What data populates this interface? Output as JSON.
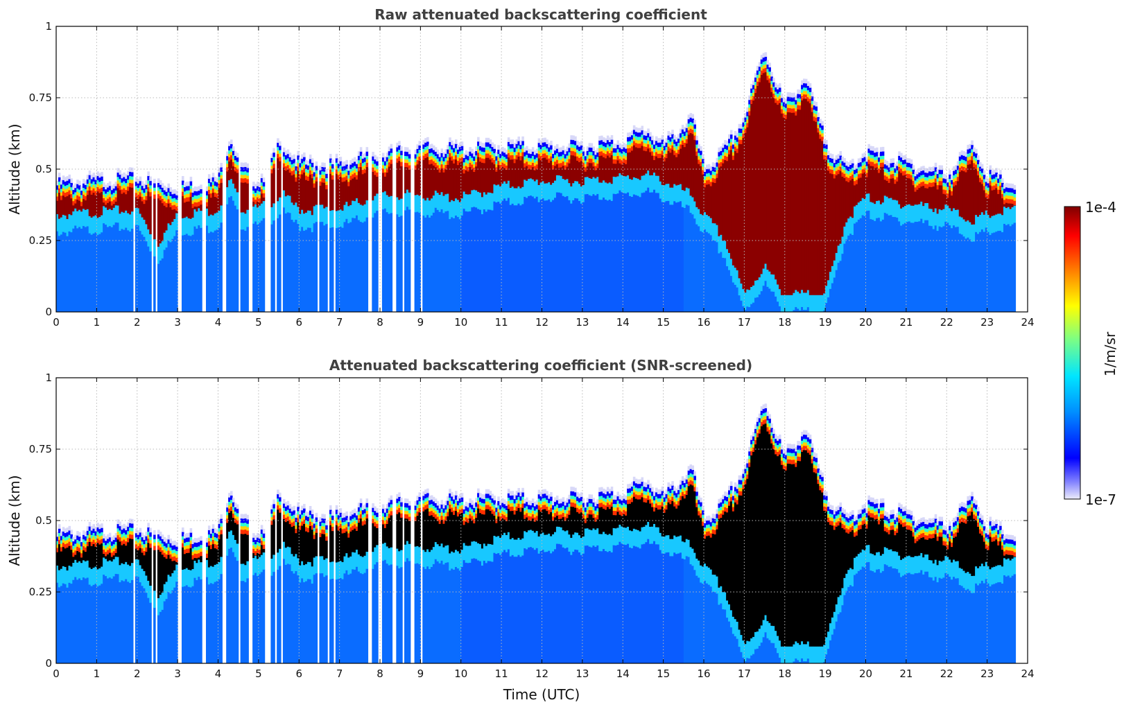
{
  "chart_data": [
    {
      "type": "heatmap",
      "title": "Raw attenuated backscattering coefficient",
      "xlabel": "",
      "ylabel": "Altitude (km)",
      "xlim": [
        0,
        24
      ],
      "ylim": [
        0,
        1
      ],
      "x_ticks": [
        "0",
        "1",
        "2",
        "3",
        "4",
        "5",
        "6",
        "7",
        "8",
        "9",
        "10",
        "11",
        "12",
        "13",
        "14",
        "15",
        "16",
        "17",
        "18",
        "19",
        "20",
        "21",
        "22",
        "23",
        "24"
      ],
      "y_ticks": [
        "0",
        "0.25",
        "0.5",
        "0.75",
        "1"
      ],
      "y_tick_values": [
        0,
        0.25,
        0.5,
        0.75,
        1
      ],
      "grid": true,
      "screened": false,
      "data_end_hour": 23.7,
      "profile": {
        "x": [
          0,
          1,
          2,
          2.5,
          3,
          4,
          4.3,
          4.6,
          5,
          5.6,
          6,
          7,
          8,
          9,
          10,
          11,
          12,
          13,
          14,
          14.6,
          15,
          15.7,
          16,
          16.5,
          17,
          17.5,
          18,
          18.5,
          19,
          19.5,
          20,
          21,
          22,
          22.7,
          23,
          23.7
        ],
        "layer_top_km": [
          0.45,
          0.46,
          0.47,
          0.45,
          0.44,
          0.46,
          0.62,
          0.5,
          0.46,
          0.6,
          0.52,
          0.52,
          0.56,
          0.58,
          0.57,
          0.58,
          0.58,
          0.58,
          0.6,
          0.64,
          0.58,
          0.68,
          0.5,
          0.56,
          0.68,
          0.92,
          0.72,
          0.82,
          0.6,
          0.5,
          0.56,
          0.52,
          0.48,
          0.58,
          0.48,
          0.44
        ],
        "layer_base_km": [
          0.28,
          0.29,
          0.3,
          0.18,
          0.28,
          0.3,
          0.4,
          0.3,
          0.3,
          0.35,
          0.3,
          0.3,
          0.35,
          0.35,
          0.34,
          0.38,
          0.4,
          0.4,
          0.41,
          0.42,
          0.4,
          0.35,
          0.28,
          0.2,
          0.0,
          0.1,
          0.0,
          0.0,
          0.0,
          0.26,
          0.34,
          0.32,
          0.3,
          0.26,
          0.28,
          0.3
        ]
      },
      "gaps_hours": [
        [
          1.92,
          1.96
        ],
        [
          2.35,
          2.4
        ],
        [
          2.45,
          2.5
        ],
        [
          3.0,
          3.1
        ],
        [
          3.6,
          3.7
        ],
        [
          4.1,
          4.2
        ],
        [
          4.5,
          4.55
        ],
        [
          4.75,
          4.85
        ],
        [
          5.15,
          5.3
        ],
        [
          5.4,
          5.45
        ],
        [
          5.55,
          5.6
        ],
        [
          6.45,
          6.5
        ],
        [
          6.7,
          6.75
        ],
        [
          6.85,
          6.9
        ],
        [
          7.7,
          7.8
        ],
        [
          7.95,
          8.05
        ],
        [
          8.3,
          8.4
        ],
        [
          8.55,
          8.6
        ],
        [
          8.75,
          8.85
        ],
        [
          9.0,
          9.05
        ]
      ]
    },
    {
      "type": "heatmap",
      "title": "Attenuated backscattering coefficient (SNR-screened)",
      "xlabel": "Time (UTC)",
      "ylabel": "Altitude (km)",
      "xlim": [
        0,
        24
      ],
      "ylim": [
        0,
        1
      ],
      "x_ticks": [
        "0",
        "1",
        "2",
        "3",
        "4",
        "5",
        "6",
        "7",
        "8",
        "9",
        "10",
        "11",
        "12",
        "13",
        "14",
        "15",
        "16",
        "17",
        "18",
        "19",
        "20",
        "21",
        "22",
        "23",
        "24"
      ],
      "y_ticks": [
        "0",
        "0.25",
        "0.5",
        "0.75",
        "1"
      ],
      "y_tick_values": [
        0,
        0.25,
        0.5,
        0.75,
        1
      ],
      "grid": true,
      "screened": true,
      "data_end_hour": 23.7,
      "profile": {
        "x": [
          0,
          1,
          2,
          2.5,
          3,
          4,
          4.3,
          4.6,
          5,
          5.6,
          6,
          7,
          8,
          9,
          10,
          11,
          12,
          13,
          14,
          14.6,
          15,
          15.7,
          16,
          16.5,
          17,
          17.5,
          18,
          18.5,
          19,
          19.5,
          20,
          21,
          22,
          22.7,
          23,
          23.7
        ],
        "layer_top_km": [
          0.45,
          0.46,
          0.47,
          0.45,
          0.44,
          0.46,
          0.62,
          0.5,
          0.46,
          0.6,
          0.52,
          0.52,
          0.56,
          0.58,
          0.57,
          0.58,
          0.58,
          0.58,
          0.6,
          0.64,
          0.58,
          0.68,
          0.5,
          0.56,
          0.68,
          0.92,
          0.72,
          0.82,
          0.6,
          0.5,
          0.56,
          0.52,
          0.48,
          0.58,
          0.48,
          0.44
        ],
        "layer_base_km": [
          0.28,
          0.29,
          0.3,
          0.18,
          0.28,
          0.3,
          0.4,
          0.3,
          0.3,
          0.35,
          0.3,
          0.3,
          0.35,
          0.35,
          0.34,
          0.38,
          0.4,
          0.4,
          0.41,
          0.42,
          0.4,
          0.35,
          0.28,
          0.2,
          0.0,
          0.1,
          0.0,
          0.0,
          0.0,
          0.26,
          0.34,
          0.32,
          0.3,
          0.26,
          0.28,
          0.3
        ]
      },
      "gaps_hours": [
        [
          1.92,
          1.96
        ],
        [
          2.35,
          2.4
        ],
        [
          2.45,
          2.5
        ],
        [
          3.0,
          3.1
        ],
        [
          3.6,
          3.7
        ],
        [
          4.1,
          4.2
        ],
        [
          4.5,
          4.55
        ],
        [
          4.75,
          4.85
        ],
        [
          5.15,
          5.3
        ],
        [
          5.4,
          5.45
        ],
        [
          5.55,
          5.6
        ],
        [
          6.45,
          6.5
        ],
        [
          6.7,
          6.75
        ],
        [
          6.85,
          6.9
        ],
        [
          7.7,
          7.8
        ],
        [
          7.95,
          8.05
        ],
        [
          8.3,
          8.4
        ],
        [
          8.55,
          8.6
        ],
        [
          8.75,
          8.85
        ],
        [
          9.0,
          9.05
        ]
      ]
    }
  ],
  "colorbar": {
    "label": "1/m/sr",
    "max_label": "1e-4",
    "min_label": "1e-7",
    "scale": "log",
    "range": [
      1e-07,
      0.0001
    ],
    "colors": [
      "#e8e8fa",
      "#0000ff",
      "#0080ff",
      "#00e5ff",
      "#80ff80",
      "#ffff00",
      "#ff8000",
      "#ff0000",
      "#800000"
    ]
  }
}
